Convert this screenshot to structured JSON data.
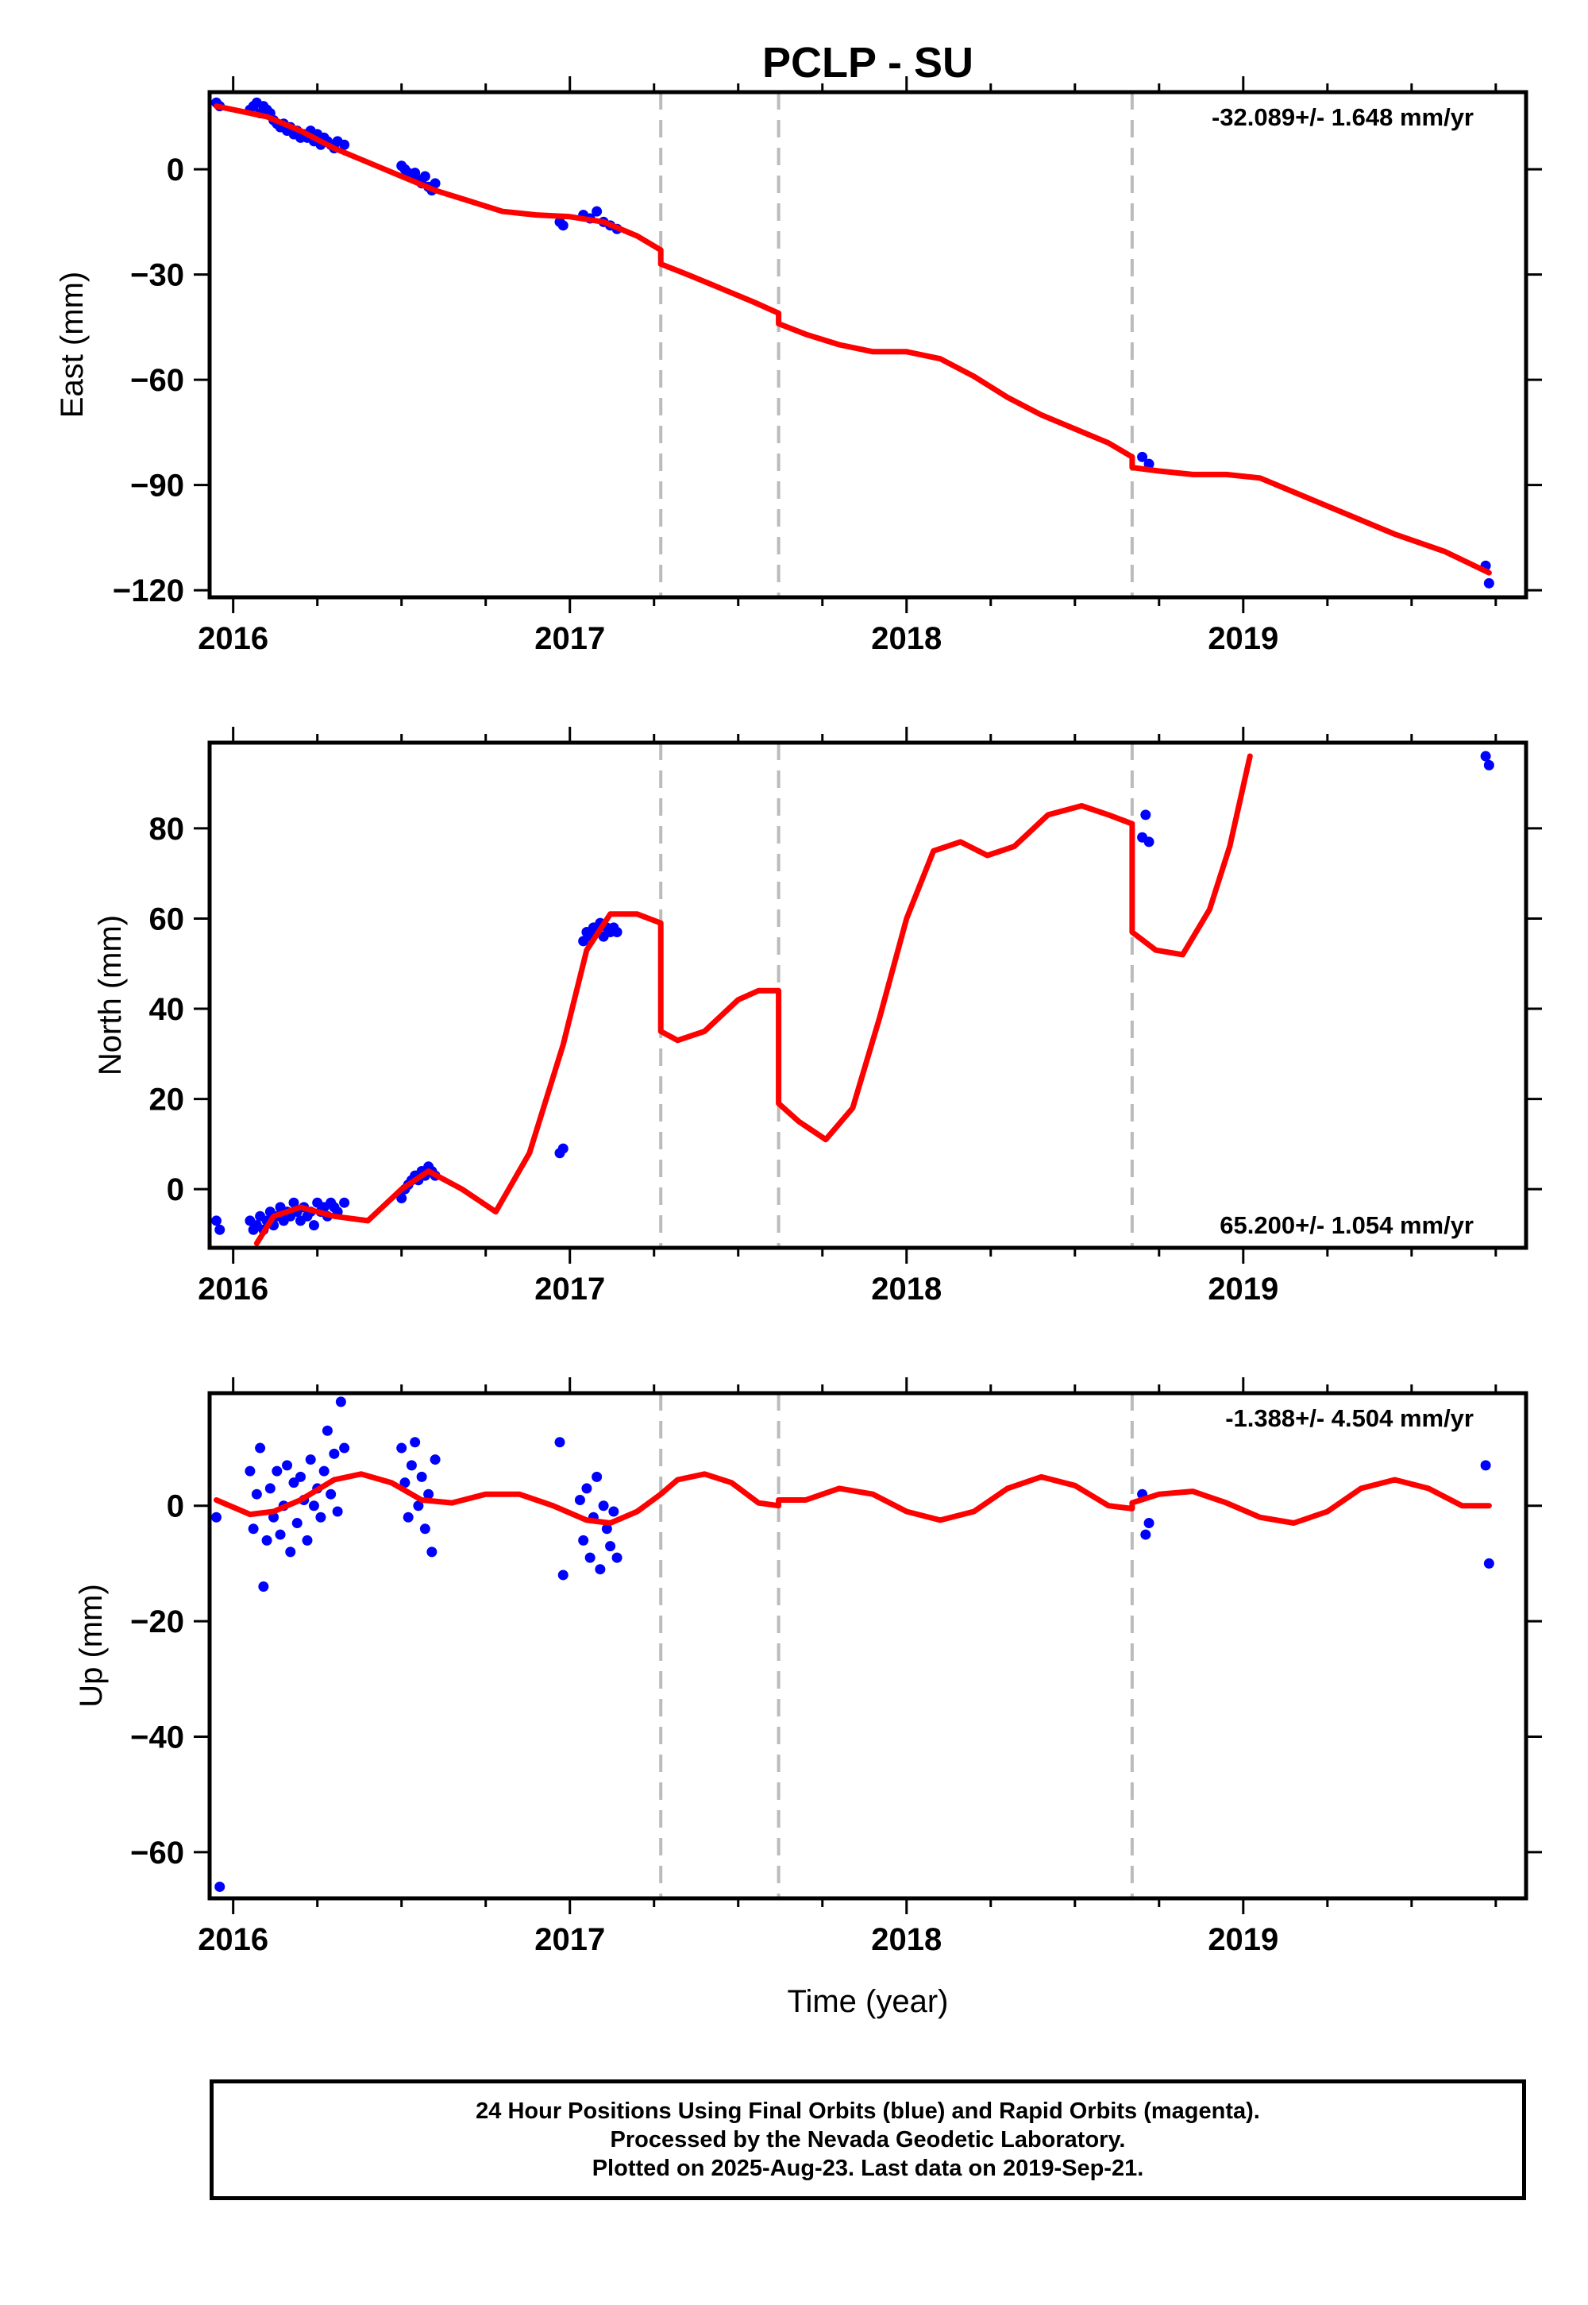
{
  "title": "PCLP - SU",
  "footer": {
    "line1": "24 Hour Positions Using Final Orbits (blue) and Rapid Orbits (magenta).",
    "line2": "Processed by the Nevada Geodetic Laboratory.",
    "line3": "Plotted on 2025-Aug-23. Last data on 2019-Sep-21."
  },
  "colors": {
    "data_points": "#0000ff",
    "model_curve": "#ff0000",
    "event_lines": "#bbbbbb",
    "axes": "#000000"
  },
  "chart_data": [
    {
      "type": "scatter",
      "ylabel": "East (mm)",
      "xlabel": "",
      "xlim": [
        2015.93,
        2019.84
      ],
      "ylim": [
        -122,
        22
      ],
      "xticks": [
        2016,
        2017,
        2018,
        2019
      ],
      "xtick_labels": [
        "2016",
        "2017",
        "2018",
        "2019"
      ],
      "yticks": [
        0,
        -30,
        -60,
        -90,
        -120
      ],
      "ytick_labels": [
        "0",
        "−30",
        "−60",
        "−90",
        "−120"
      ],
      "rate_label": "-32.089+/- 1.648 mm/yr",
      "rate_position": "top-right",
      "event_lines": [
        2017.27,
        2017.62,
        2018.67
      ],
      "series": [
        {
          "role": "observations",
          "x": [
            2015.95,
            2015.96,
            2016.05,
            2016.06,
            2016.07,
            2016.08,
            2016.09,
            2016.1,
            2016.11,
            2016.12,
            2016.13,
            2016.14,
            2016.15,
            2016.16,
            2016.17,
            2016.18,
            2016.19,
            2016.2,
            2016.21,
            2016.22,
            2016.23,
            2016.24,
            2016.25,
            2016.26,
            2016.27,
            2016.28,
            2016.29,
            2016.3,
            2016.31,
            2016.33,
            2016.5,
            2016.51,
            2016.52,
            2016.53,
            2016.54,
            2016.55,
            2016.56,
            2016.57,
            2016.58,
            2016.59,
            2016.6,
            2016.97,
            2016.98,
            2017.04,
            2017.06,
            2017.08,
            2017.1,
            2017.12,
            2017.14,
            2018.7,
            2018.72,
            2019.72,
            2019.73
          ],
          "y": [
            19,
            18,
            17,
            18,
            19,
            16,
            18,
            17,
            16,
            14,
            13,
            12,
            13,
            11,
            12,
            10,
            11,
            9,
            10,
            9,
            11,
            8,
            10,
            7,
            9,
            8,
            7,
            6,
            8,
            7,
            1,
            0,
            -1,
            -2,
            -1,
            -3,
            -4,
            -2,
            -5,
            -6,
            -4,
            -15,
            -16,
            -13,
            -14,
            -12,
            -15,
            -16,
            -17,
            -82,
            -84,
            -113,
            -118
          ]
        },
        {
          "role": "model",
          "x": [
            2015.95,
            2016.0,
            2016.1,
            2016.2,
            2016.3,
            2016.4,
            2016.5,
            2016.6,
            2016.7,
            2016.8,
            2016.9,
            2017.0,
            2017.1,
            2017.2,
            2017.27,
            2017.27,
            2017.35,
            2017.45,
            2017.55,
            2017.62,
            2017.62,
            2017.7,
            2017.8,
            2017.9,
            2018.0,
            2018.1,
            2018.2,
            2018.3,
            2018.4,
            2018.5,
            2018.6,
            2018.67,
            2018.67,
            2018.75,
            2018.85,
            2018.95,
            2019.05,
            2019.15,
            2019.3,
            2019.45,
            2019.6,
            2019.73
          ],
          "y": [
            18,
            17,
            15,
            11,
            6,
            2,
            -2,
            -6,
            -9,
            -12,
            -13,
            -13.5,
            -15,
            -19,
            -23,
            -27,
            -30,
            -34,
            -38,
            -41,
            -44,
            -47,
            -50,
            -52,
            -52,
            -54,
            -59,
            -65,
            -70,
            -74,
            -78,
            -82,
            -85,
            -86,
            -87,
            -87,
            -88,
            -92,
            -98,
            -104,
            -109,
            -115
          ]
        }
      ]
    },
    {
      "type": "scatter",
      "ylabel": "North (mm)",
      "xlabel": "",
      "xlim": [
        2015.93,
        2019.84
      ],
      "ylim": [
        -13,
        99
      ],
      "xticks": [
        2016,
        2017,
        2018,
        2019
      ],
      "xtick_labels": [
        "2016",
        "2017",
        "2018",
        "2019"
      ],
      "yticks": [
        0,
        20,
        40,
        60,
        80
      ],
      "ytick_labels": [
        "0",
        "20",
        "40",
        "60",
        "80"
      ],
      "rate_label": "65.200+/- 1.054 mm/yr",
      "rate_position": "bottom-right",
      "event_lines": [
        2017.27,
        2017.62,
        2018.67
      ],
      "series": [
        {
          "role": "observations",
          "x": [
            2015.95,
            2015.96,
            2016.05,
            2016.06,
            2016.07,
            2016.08,
            2016.09,
            2016.1,
            2016.11,
            2016.12,
            2016.13,
            2016.14,
            2016.15,
            2016.16,
            2016.17,
            2016.18,
            2016.19,
            2016.2,
            2016.21,
            2016.22,
            2016.23,
            2016.24,
            2016.25,
            2016.26,
            2016.27,
            2016.28,
            2016.29,
            2016.3,
            2016.31,
            2016.33,
            2016.5,
            2016.51,
            2016.52,
            2016.53,
            2016.54,
            2016.55,
            2016.56,
            2016.57,
            2016.58,
            2016.59,
            2016.6,
            2016.97,
            2016.98,
            2017.04,
            2017.05,
            2017.06,
            2017.07,
            2017.08,
            2017.09,
            2017.1,
            2017.11,
            2017.12,
            2017.13,
            2017.14,
            2018.7,
            2018.71,
            2018.72,
            2019.72,
            2019.73
          ],
          "y": [
            -7,
            -9,
            -7,
            -9,
            -8,
            -6,
            -9,
            -7,
            -5,
            -8,
            -6,
            -4,
            -7,
            -5,
            -6,
            -3,
            -5,
            -7,
            -4,
            -6,
            -5,
            -8,
            -3,
            -5,
            -4,
            -6,
            -3,
            -4,
            -5,
            -3,
            -2,
            0,
            1,
            2,
            3,
            2,
            4,
            3,
            5,
            4,
            3,
            8,
            9,
            55,
            57,
            56,
            58,
            57,
            59,
            56,
            58,
            57,
            58,
            57,
            78,
            83,
            77,
            96,
            94
          ],
          "note": "observations"
        },
        {
          "role": "model",
          "x": [
            2016.07,
            2016.12,
            2016.2,
            2016.3,
            2016.4,
            2016.5,
            2016.58,
            2016.68,
            2016.78,
            2016.88,
            2016.98,
            2017.05,
            2017.12,
            2017.2,
            2017.27,
            2017.27,
            2017.32,
            2017.4,
            2017.5,
            2017.56,
            2017.62,
            2017.62,
            2017.68,
            2017.76,
            2017.84,
            2017.92,
            2018.0,
            2018.08,
            2018.16,
            2018.24,
            2018.32,
            2018.42,
            2018.52,
            2018.6,
            2018.67,
            2018.67,
            2018.74,
            2018.82,
            2018.9,
            2018.96,
            2019.02
          ],
          "y": [
            -12,
            -6,
            -4,
            -6,
            -7,
            0,
            4,
            0,
            -5,
            8,
            32,
            53,
            61,
            61,
            59,
            35,
            33,
            35,
            42,
            44,
            44,
            19,
            15,
            11,
            18,
            38,
            60,
            75,
            77,
            74,
            76,
            83,
            85,
            83,
            81,
            57,
            53,
            52,
            62,
            76,
            96
          ]
        }
      ]
    },
    {
      "type": "scatter",
      "ylabel": "Up (mm)",
      "xlabel": "Time (year)",
      "xlim": [
        2015.93,
        2019.84
      ],
      "ylim": [
        -68,
        19.5
      ],
      "xticks": [
        2016,
        2017,
        2018,
        2019
      ],
      "xtick_labels": [
        "2016",
        "2017",
        "2018",
        "2019"
      ],
      "yticks": [
        0,
        -20,
        -40,
        -60
      ],
      "ytick_labels": [
        "0",
        "−20",
        "−40",
        "−60"
      ],
      "rate_label": "-1.388+/- 4.504 mm/yr",
      "rate_position": "top-right",
      "event_lines": [
        2017.27,
        2017.62,
        2018.67
      ],
      "series": [
        {
          "role": "observations",
          "x": [
            2015.95,
            2015.96,
            2016.05,
            2016.06,
            2016.07,
            2016.08,
            2016.09,
            2016.1,
            2016.11,
            2016.12,
            2016.13,
            2016.14,
            2016.15,
            2016.16,
            2016.17,
            2016.18,
            2016.19,
            2016.2,
            2016.21,
            2016.22,
            2016.23,
            2016.24,
            2016.25,
            2016.26,
            2016.27,
            2016.28,
            2016.29,
            2016.3,
            2016.31,
            2016.32,
            2016.33,
            2016.5,
            2016.51,
            2016.52,
            2016.53,
            2016.54,
            2016.55,
            2016.56,
            2016.57,
            2016.58,
            2016.59,
            2016.6,
            2016.97,
            2016.98,
            2017.03,
            2017.04,
            2017.05,
            2017.06,
            2017.07,
            2017.08,
            2017.09,
            2017.1,
            2017.11,
            2017.12,
            2017.13,
            2017.14,
            2018.7,
            2018.71,
            2018.72,
            2019.72,
            2019.73
          ],
          "y": [
            -2,
            -66,
            6,
            -4,
            2,
            10,
            -14,
            -6,
            3,
            -2,
            6,
            -5,
            0,
            7,
            -8,
            4,
            -3,
            5,
            1,
            -6,
            8,
            0,
            3,
            -2,
            6,
            13,
            2,
            9,
            -1,
            18,
            10,
            10,
            4,
            -2,
            7,
            11,
            0,
            5,
            -4,
            2,
            -8,
            8,
            11,
            -12,
            1,
            -6,
            3,
            -9,
            -2,
            5,
            -11,
            0,
            -4,
            -7,
            -1,
            -9,
            2,
            -5,
            -3,
            7,
            -10
          ]
        },
        {
          "role": "model",
          "x": [
            2015.95,
            2016.05,
            2016.12,
            2016.2,
            2016.3,
            2016.38,
            2016.47,
            2016.56,
            2016.65,
            2016.75,
            2016.85,
            2016.95,
            2017.05,
            2017.12,
            2017.2,
            2017.27,
            2017.27,
            2017.32,
            2017.4,
            2017.48,
            2017.56,
            2017.62,
            2017.62,
            2017.7,
            2017.8,
            2017.9,
            2018.0,
            2018.1,
            2018.2,
            2018.3,
            2018.4,
            2018.5,
            2018.6,
            2018.67,
            2018.67,
            2018.75,
            2018.85,
            2018.95,
            2019.05,
            2019.15,
            2019.25,
            2019.35,
            2019.45,
            2019.55,
            2019.65,
            2019.73
          ],
          "y": [
            1,
            -1.5,
            -1,
            1,
            4.5,
            5.5,
            4,
            1,
            0.5,
            2,
            2,
            0,
            -2.5,
            -3,
            -1,
            2,
            2,
            4.5,
            5.5,
            4,
            0.5,
            0,
            1,
            1,
            3,
            2,
            -1,
            -2.5,
            -1,
            3,
            5,
            3.5,
            0,
            -0.5,
            0.5,
            2,
            2.5,
            0.5,
            -2,
            -3,
            -1,
            3,
            4.5,
            3,
            0,
            0
          ]
        }
      ]
    }
  ]
}
